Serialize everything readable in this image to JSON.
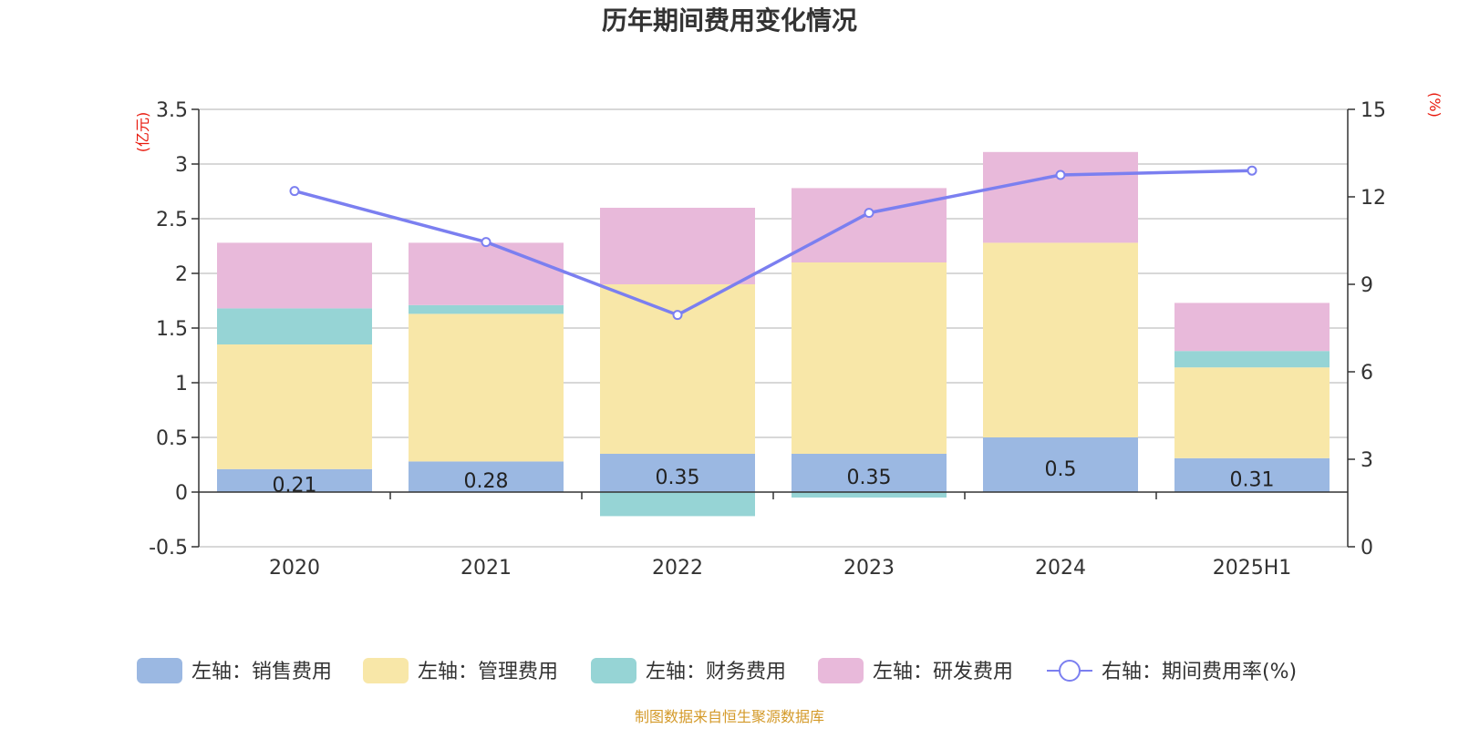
{
  "chart_data": {
    "type": "bar",
    "stacked": true,
    "title": "历年期间费用变化情况",
    "categories": [
      "2020",
      "2021",
      "2022",
      "2023",
      "2024",
      "2025H1"
    ],
    "left_axis": {
      "unit": "(亿元)",
      "ylim": [
        -0.5,
        3.5
      ],
      "ticks": [
        "3.5",
        "3",
        "2.5",
        "2",
        "1.5",
        "1",
        "0.5",
        "0",
        "-0.5"
      ],
      "tick_values": [
        3.5,
        3,
        2.5,
        2,
        1.5,
        1,
        0.5,
        0,
        -0.5
      ]
    },
    "right_axis": {
      "unit": "(%)",
      "ylim": [
        0,
        15
      ],
      "ticks": [
        "15",
        "12",
        "9",
        "6",
        "3",
        "0"
      ],
      "tick_values": [
        15,
        12,
        9,
        6,
        3,
        0
      ]
    },
    "series": [
      {
        "name": "左轴：销售费用",
        "color": "#9bb8e2",
        "values": [
          0.21,
          0.28,
          0.35,
          0.35,
          0.5,
          0.31
        ],
        "labels": [
          "0.21",
          "0.28",
          "0.35",
          "0.35",
          "0.5",
          "0.31"
        ]
      },
      {
        "name": "左轴：管理费用",
        "color": "#f8e7a8",
        "values": [
          1.14,
          1.35,
          1.55,
          1.75,
          1.78,
          0.83
        ]
      },
      {
        "name": "左轴：财务费用",
        "color": "#96d4d5",
        "values": [
          0.33,
          0.08,
          -0.22,
          -0.05,
          0.0,
          0.15
        ]
      },
      {
        "name": "左轴：研发费用",
        "color": "#e8b9da",
        "values": [
          0.6,
          0.57,
          0.7,
          0.68,
          0.83,
          0.44
        ]
      }
    ],
    "line": {
      "name": "右轴：期间费用率(%)",
      "color": "#7b7ff0",
      "values": [
        12.2,
        10.45,
        7.95,
        11.45,
        12.75,
        12.9
      ]
    },
    "grid": true,
    "legend_position": "bottom",
    "source": "制图数据来自恒生聚源数据库"
  }
}
